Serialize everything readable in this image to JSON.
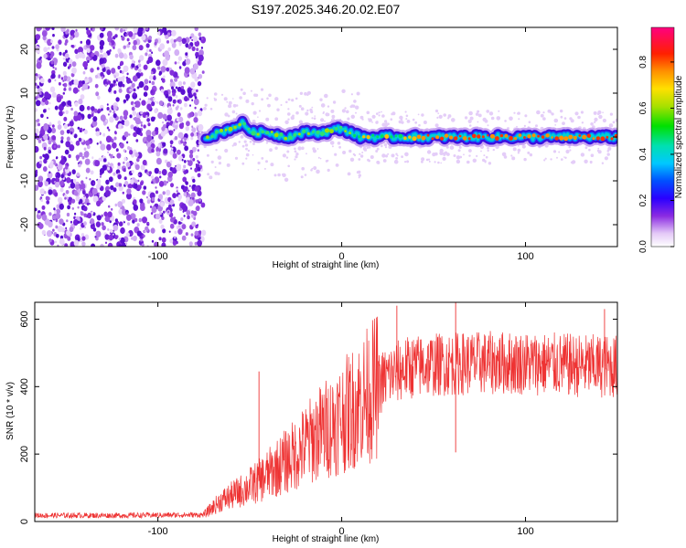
{
  "title": "S197.2025.346.20.02.E07",
  "chart_data": [
    {
      "type": "heatmap",
      "xlabel": "Height of straight line (km)",
      "ylabel": "Frequency (Hz)",
      "xlim": [
        -167,
        150
      ],
      "ylim": [
        -25,
        25
      ],
      "xticks": [
        -100,
        0,
        100
      ],
      "yticks": [
        -20,
        -10,
        0,
        10,
        20
      ],
      "noise_region_x": [
        -167,
        -75
      ],
      "signal_line": [
        {
          "x": -74,
          "y": 0
        },
        {
          "x": -66,
          "y": 1
        },
        {
          "x": -60,
          "y": 2
        },
        {
          "x": -54,
          "y": 3
        },
        {
          "x": -48,
          "y": 1
        },
        {
          "x": -40,
          "y": 1
        },
        {
          "x": -30,
          "y": 0
        },
        {
          "x": -20,
          "y": 1
        },
        {
          "x": -10,
          "y": 1
        },
        {
          "x": 0,
          "y": 2
        },
        {
          "x": 10,
          "y": 0
        },
        {
          "x": 20,
          "y": 0
        },
        {
          "x": 30,
          "y": 0
        },
        {
          "x": 40,
          "y": 0
        },
        {
          "x": 60,
          "y": 0
        },
        {
          "x": 80,
          "y": 0
        },
        {
          "x": 100,
          "y": 0
        },
        {
          "x": 120,
          "y": 0
        },
        {
          "x": 150,
          "y": 0
        }
      ],
      "colorbar": {
        "label": "Normalized spectral amplitude",
        "range": [
          0,
          0.95
        ],
        "ticks": [
          "0.0",
          "0.2",
          "0.4",
          "0.6",
          "0.8"
        ]
      }
    },
    {
      "type": "line",
      "xlabel": "Height of straight line (km)",
      "ylabel": "SNR (10 * v/v)",
      "xlim": [
        -167,
        150
      ],
      "ylim": [
        0,
        650
      ],
      "xticks": [
        -100,
        0,
        100
      ],
      "yticks": [
        0,
        200,
        400,
        600
      ],
      "color": "#ee3333",
      "envelope": [
        {
          "x": -167,
          "y": 18
        },
        {
          "x": -120,
          "y": 18
        },
        {
          "x": -75,
          "y": 20
        },
        {
          "x": -66,
          "y": 60
        },
        {
          "x": -55,
          "y": 90
        },
        {
          "x": -45,
          "y": 120
        },
        {
          "x": -35,
          "y": 160
        },
        {
          "x": -25,
          "y": 200
        },
        {
          "x": -15,
          "y": 250
        },
        {
          "x": -5,
          "y": 290
        },
        {
          "x": 5,
          "y": 330
        },
        {
          "x": 15,
          "y": 380
        },
        {
          "x": 25,
          "y": 430
        },
        {
          "x": 35,
          "y": 455
        },
        {
          "x": 50,
          "y": 465
        },
        {
          "x": 70,
          "y": 470
        },
        {
          "x": 100,
          "y": 470
        },
        {
          "x": 130,
          "y": 462
        },
        {
          "x": 150,
          "y": 460
        }
      ],
      "spikes": [
        {
          "x": -45,
          "y": 445
        },
        {
          "x": 30,
          "y": 640
        },
        {
          "x": 62,
          "y": 650
        },
        {
          "x": 62,
          "y": 205
        },
        {
          "x": 143,
          "y": 630
        }
      ]
    }
  ]
}
